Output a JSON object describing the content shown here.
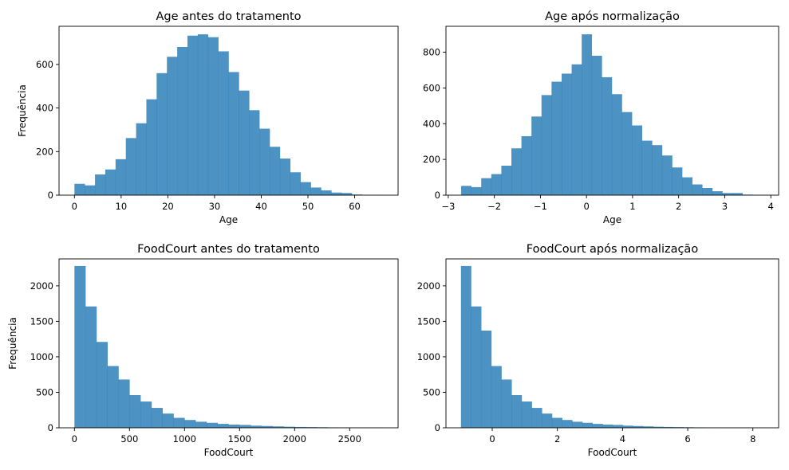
{
  "chart_data": [
    {
      "type": "bar",
      "title": "Age antes do tratamento",
      "xlabel": "Age",
      "ylabel": "Frequência",
      "xlim": [
        -3.3,
        69.3
      ],
      "ylim": [
        0,
        775
      ],
      "xticks": [
        0,
        10,
        20,
        30,
        40,
        50,
        60
      ],
      "yticks": [
        0,
        200,
        400,
        600
      ],
      "bin_start": 0,
      "bin_width": 2.2,
      "values": [
        52,
        45,
        95,
        118,
        165,
        262,
        330,
        440,
        560,
        635,
        680,
        732,
        738,
        725,
        660,
        565,
        480,
        390,
        305,
        222,
        168,
        105,
        60,
        35,
        22,
        12,
        10,
        3,
        1,
        1
      ]
    },
    {
      "type": "bar",
      "title": "Age após normalização",
      "xlabel": "Age",
      "ylabel": "",
      "xlim": [
        -3.05,
        4.17
      ],
      "ylim": [
        0,
        945
      ],
      "xticks": [
        -3,
        -2,
        -1,
        0,
        1,
        2,
        3,
        4
      ],
      "yticks": [
        0,
        200,
        400,
        600,
        800
      ],
      "bin_start": -2.72,
      "bin_width": 0.218,
      "values": [
        52,
        45,
        95,
        118,
        165,
        262,
        330,
        440,
        560,
        635,
        680,
        732,
        900,
        780,
        660,
        565,
        465,
        390,
        305,
        280,
        222,
        155,
        100,
        60,
        40,
        22,
        12,
        12,
        3,
        1
      ]
    },
    {
      "type": "bar",
      "title": "FoodCourt antes do tratamento",
      "xlabel": "FoodCourt",
      "ylabel": "Frequência",
      "xlim": [
        -140,
        2940
      ],
      "ylim": [
        0,
        2380
      ],
      "xticks": [
        0,
        500,
        1000,
        1500,
        2000,
        2500
      ],
      "yticks": [
        0,
        500,
        1000,
        1500,
        2000
      ],
      "bin_start": 0,
      "bin_width": 100,
      "values": [
        2280,
        1710,
        1210,
        870,
        680,
        460,
        370,
        280,
        200,
        140,
        110,
        85,
        70,
        55,
        45,
        40,
        30,
        25,
        20,
        15,
        12,
        10,
        8,
        6,
        5,
        4,
        3,
        2
      ]
    },
    {
      "type": "bar",
      "title": "FoodCourt após normalização",
      "xlabel": "FoodCourt",
      "ylabel": "",
      "xlim": [
        -1.42,
        8.79
      ],
      "ylim": [
        0,
        2380
      ],
      "xticks": [
        0,
        2,
        4,
        6,
        8
      ],
      "yticks": [
        0,
        500,
        1000,
        1500,
        2000
      ],
      "bin_start": -0.96,
      "bin_width": 0.3106,
      "values": [
        2280,
        1710,
        1370,
        870,
        680,
        460,
        370,
        280,
        200,
        140,
        110,
        85,
        70,
        55,
        45,
        40,
        30,
        25,
        20,
        15,
        12,
        10,
        8,
        6,
        5,
        4,
        3,
        2,
        2,
        1
      ]
    }
  ]
}
